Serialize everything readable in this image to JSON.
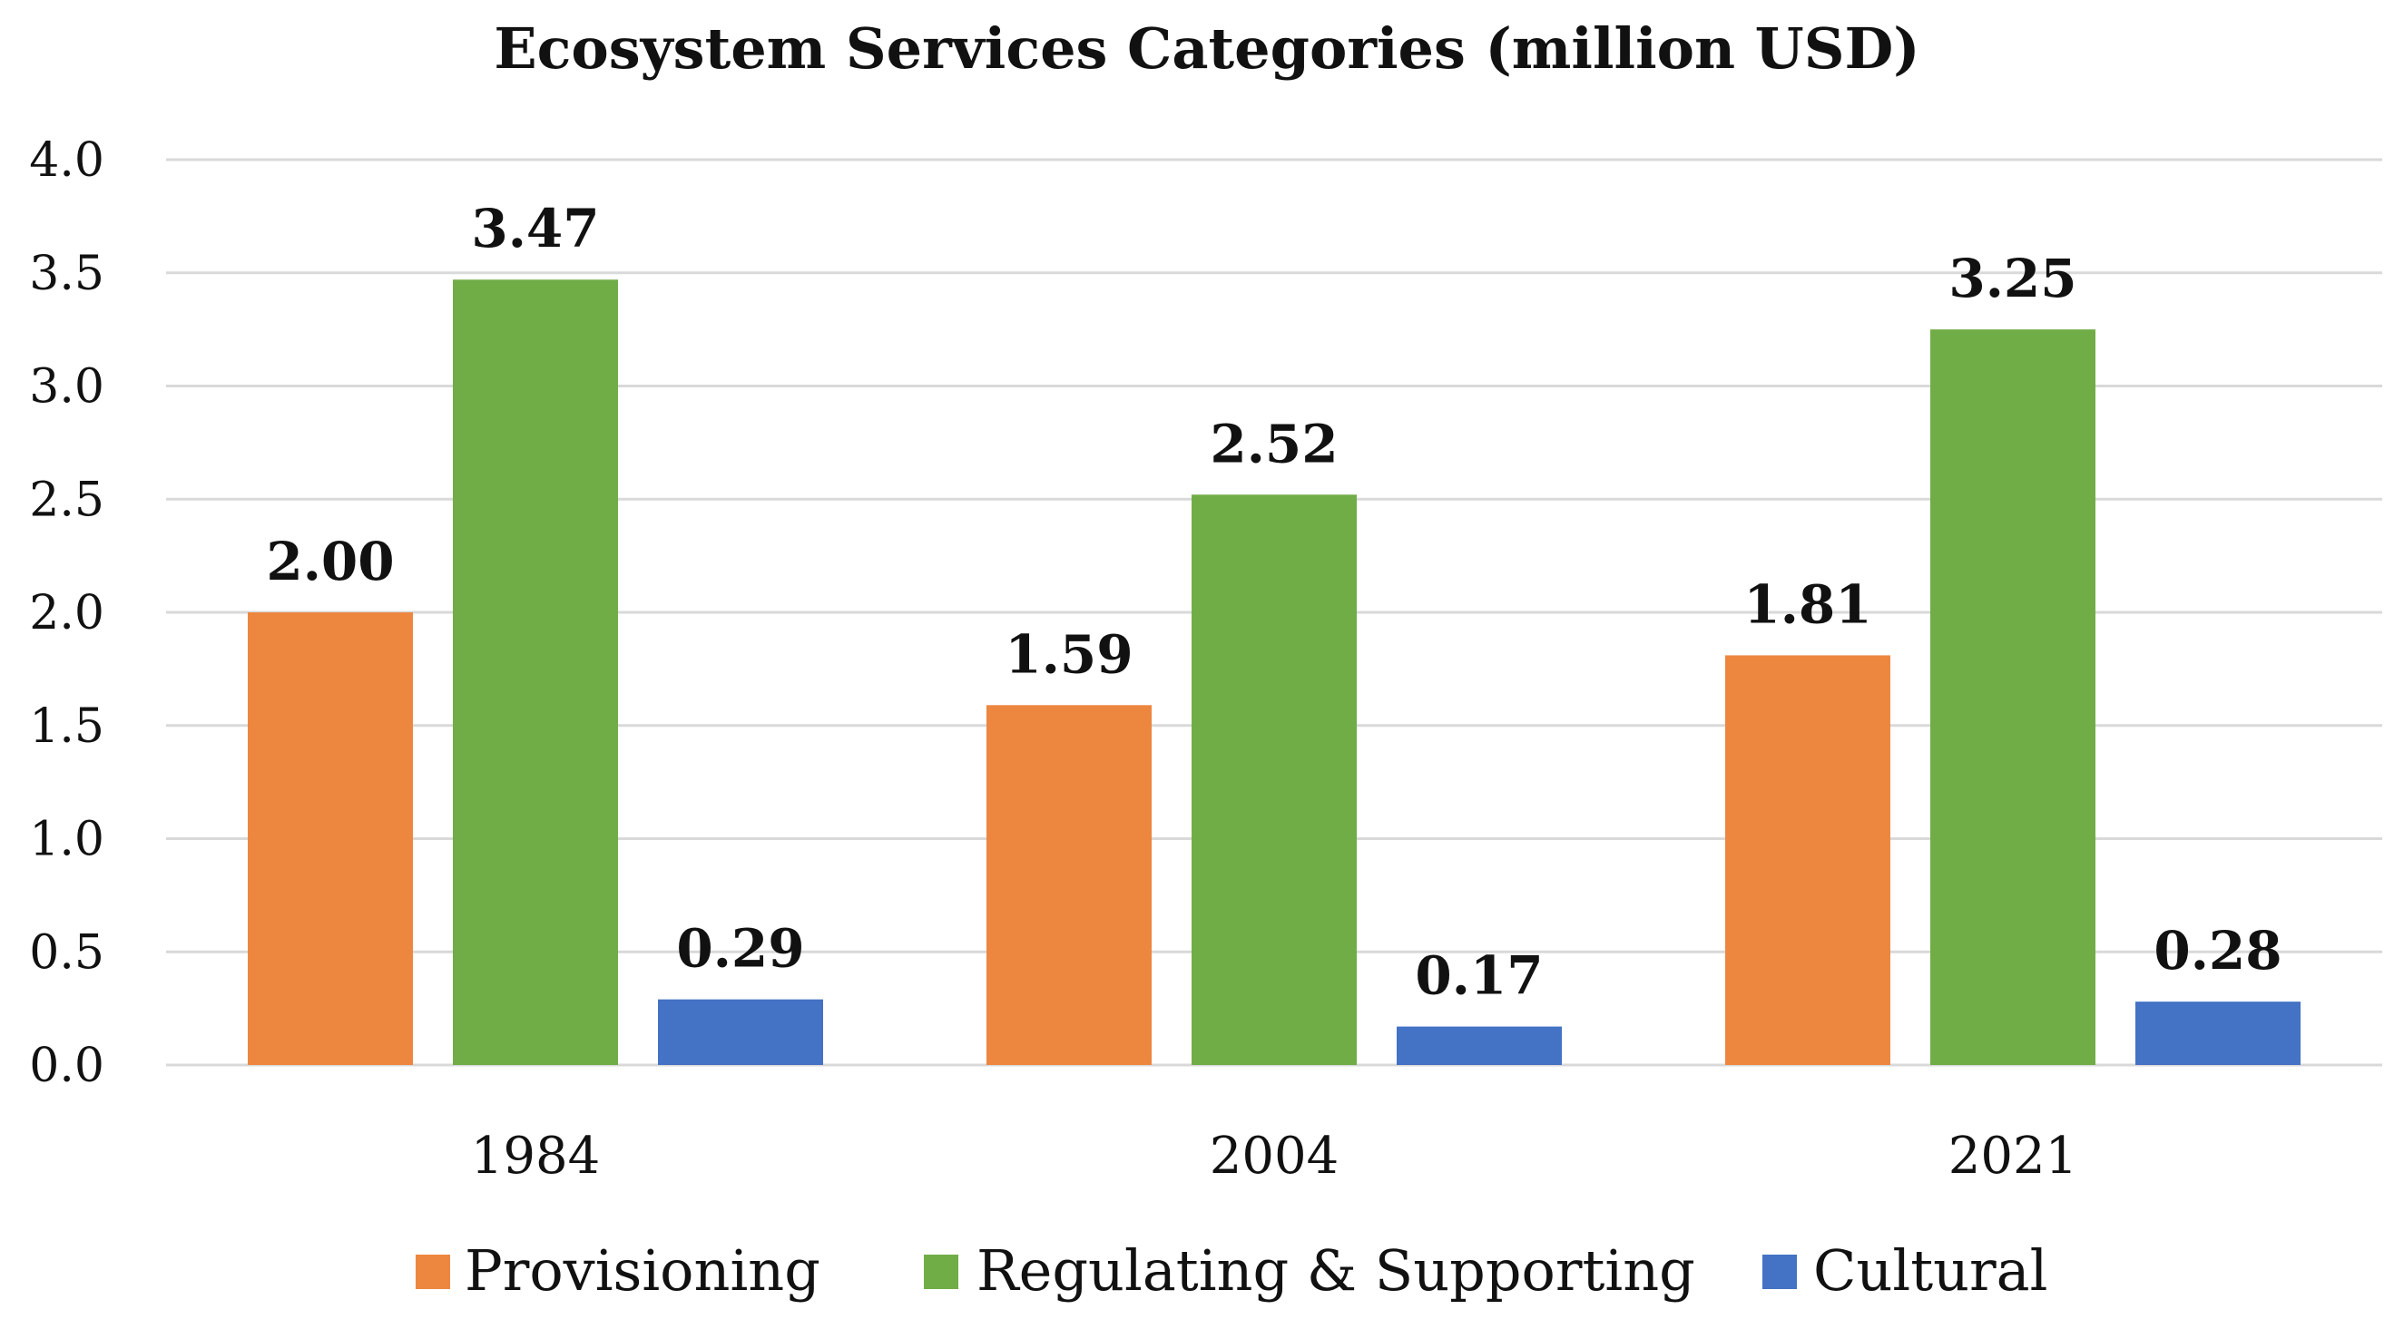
{
  "chart_data": {
    "type": "bar",
    "title": "Ecosystem Services Categories (million USD)",
    "xlabel": "",
    "ylabel": "",
    "ylim": [
      0,
      4
    ],
    "yticks": [
      "0.0",
      "0.5",
      "1.0",
      "1.5",
      "2.0",
      "2.5",
      "3.0",
      "3.5",
      "4.0"
    ],
    "categories": [
      "1984",
      "2004",
      "2021"
    ],
    "series": [
      {
        "name": "Provisioning",
        "color": "#ED873F",
        "values": [
          2.0,
          1.59,
          1.81
        ],
        "labels": [
          "2.00",
          "1.59",
          "1.81"
        ]
      },
      {
        "name": "Regulating & Supporting",
        "color": "#71AD47",
        "values": [
          3.47,
          2.52,
          3.25
        ],
        "labels": [
          "3.47",
          "2.52",
          "3.25"
        ]
      },
      {
        "name": "Cultural",
        "color": "#4472C4",
        "values": [
          0.29,
          0.17,
          0.28
        ],
        "labels": [
          "0.29",
          "0.17",
          "0.28"
        ]
      }
    ],
    "grid": true,
    "legend_position": "bottom"
  }
}
